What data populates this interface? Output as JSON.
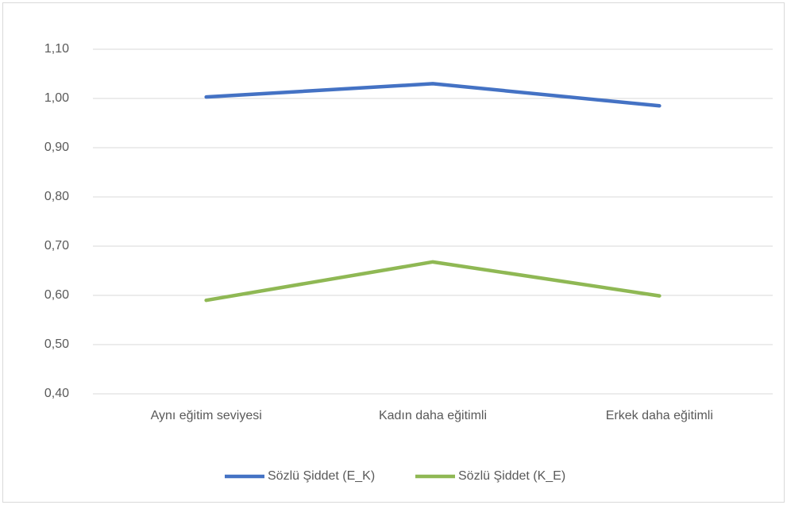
{
  "chart_data": {
    "type": "line",
    "categories": [
      "Aynı eğitim seviyesi",
      "Kadın daha eğitimli",
      "Erkek daha eğitimli"
    ],
    "series": [
      {
        "name": "Sözlü Şiddet (E_K)",
        "color": "#4472c4",
        "values": [
          1.003,
          1.03,
          0.985
        ]
      },
      {
        "name": "Sözlü Şiddet (K_E)",
        "color": "#8fb854",
        "values": [
          0.59,
          0.668,
          0.599
        ]
      }
    ],
    "ylim": [
      0.4,
      1.1
    ],
    "yticks": [
      {
        "value": 0.4,
        "label": "0,40"
      },
      {
        "value": 0.5,
        "label": "0,50"
      },
      {
        "value": 0.6,
        "label": "0,60"
      },
      {
        "value": 0.7,
        "label": "0,70"
      },
      {
        "value": 0.8,
        "label": "0,80"
      },
      {
        "value": 0.9,
        "label": "0,90"
      },
      {
        "value": 1.0,
        "label": "1,00"
      },
      {
        "value": 1.1,
        "label": "1,10"
      }
    ],
    "grid": true,
    "legend": "bottom"
  }
}
